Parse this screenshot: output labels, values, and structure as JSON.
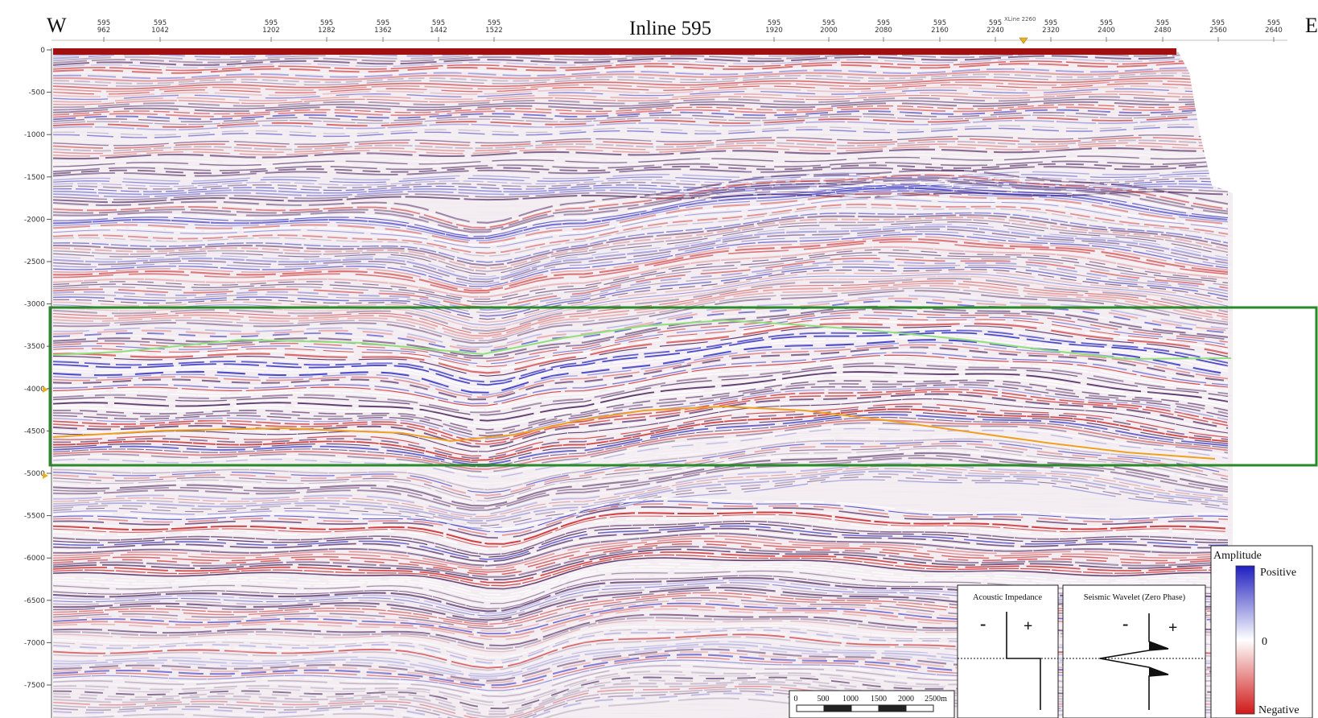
{
  "title": "Inline 595",
  "west_label": "W",
  "east_label": "E",
  "inline_number": "595",
  "top_ticks": [
    "962",
    "1042",
    "1202",
    "1282",
    "1362",
    "1442",
    "1522",
    "1920",
    "2000",
    "2080",
    "2160",
    "2240",
    "2320",
    "2400",
    "2480",
    "2560",
    "2640"
  ],
  "xline_marker": "XLine 2260",
  "depth_ticks": [
    "0",
    "-500",
    "-1000",
    "-1500",
    "-2000",
    "-2500",
    "-3000",
    "-3500",
    "-4000",
    "-4500",
    "-5000",
    "-5500",
    "-6000",
    "-6500",
    "-7000",
    "-7500"
  ],
  "scale_bar": {
    "labels": [
      "0",
      "500",
      "1000",
      "1500",
      "2000",
      "2500m"
    ]
  },
  "acoustic_impedance": {
    "title": "Acoustic Impedance",
    "minus": "-",
    "plus": "+"
  },
  "seismic_wavelet": {
    "title": "Seismic Wavelet (Zero Phase)",
    "minus": "-",
    "plus": "+"
  },
  "amplitude_legend": {
    "title": "Amplitude",
    "positive": "Positive",
    "zero": "0",
    "negative": "Negative"
  },
  "colors": {
    "positive": "#1f1fbf",
    "negative": "#c81414",
    "dark_purple": "#3d1350",
    "highlight_box": "#2a8a2a",
    "upper_horizon": "#8fe07a",
    "lower_horizon": "#f0a020"
  }
}
